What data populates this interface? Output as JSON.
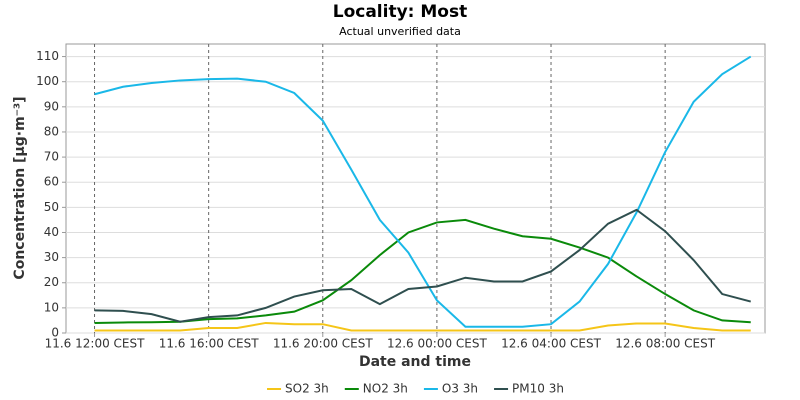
{
  "chart_data": {
    "type": "line",
    "title": "Locality: Most",
    "subtitle": "Actual unverified data",
    "x_label": "Date and time",
    "y_label": "Concentration [µg·m⁻³]",
    "x": [
      0,
      1,
      2,
      3,
      4,
      5,
      6,
      7,
      8,
      9,
      10,
      11,
      12,
      13,
      14,
      15,
      16,
      17,
      18,
      19,
      20,
      21,
      22,
      23
    ],
    "xlim": [
      -1,
      23.5
    ],
    "xticks": [
      {
        "value": 0,
        "label": "11.6 12:00 CEST"
      },
      {
        "value": 4,
        "label": "11.6 16:00 CEST"
      },
      {
        "value": 8,
        "label": "11.6 20:00 CEST"
      },
      {
        "value": 12,
        "label": "12.6 00:00 CEST"
      },
      {
        "value": 16,
        "label": "12.6 04:00 CEST"
      },
      {
        "value": 20,
        "label": "12.6 08:00 CEST"
      }
    ],
    "ylim": [
      0,
      115
    ],
    "yticks": [
      0,
      10,
      20,
      30,
      40,
      50,
      60,
      70,
      80,
      90,
      100,
      110
    ],
    "grid": true,
    "legend": "bottom",
    "series": [
      {
        "name": "SO2 3h",
        "color": "#f5c518",
        "values": [
          1,
          1,
          1,
          1,
          2,
          2,
          4,
          3.5,
          3.5,
          1,
          1,
          1,
          1,
          1,
          1,
          1,
          1,
          1,
          3,
          3.8,
          3.8,
          2,
          1,
          1
        ]
      },
      {
        "name": "NO2 3h",
        "color": "#0a8a0a",
        "values": [
          4,
          4.2,
          4.3,
          4.5,
          5.5,
          5.8,
          7,
          8.5,
          13,
          21,
          31,
          40,
          44,
          45,
          41.5,
          38.5,
          37.5,
          34,
          30,
          22.5,
          15.5,
          9,
          5,
          4.3
        ]
      },
      {
        "name": "O3 3h",
        "color": "#1ab8e8",
        "values": [
          95,
          98,
          99.5,
          100.5,
          101,
          101.2,
          100,
          95.5,
          84.5,
          65,
          45,
          32,
          13,
          2.5,
          2.5,
          2.5,
          3.5,
          12.5,
          27.5,
          48,
          72,
          92,
          103,
          110
        ]
      },
      {
        "name": "PM10 3h",
        "color": "#2f4f4f",
        "values": [
          9,
          8.8,
          7.5,
          4.5,
          6.3,
          7,
          10,
          14.5,
          17,
          17.5,
          11.5,
          17.5,
          18.5,
          22,
          20.5,
          20.5,
          24.5,
          33,
          43.5,
          49,
          40.5,
          29,
          15.5,
          12.5
        ]
      }
    ]
  }
}
